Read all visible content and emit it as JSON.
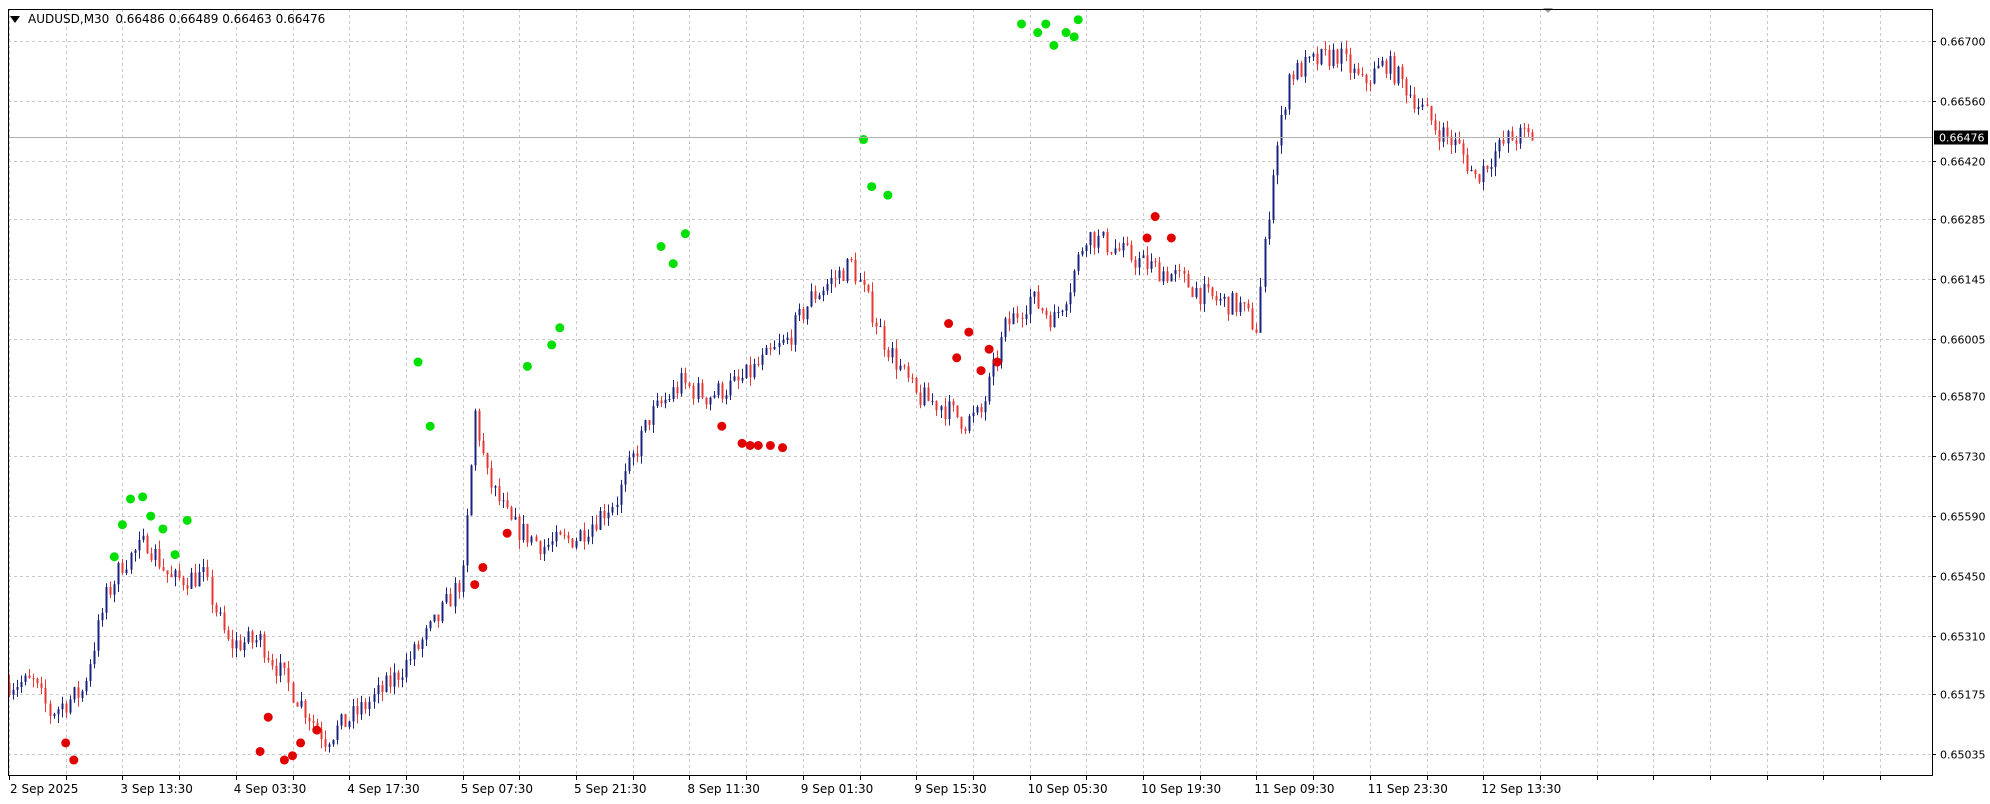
{
  "header": {
    "symbol": "AUDUSD,M30",
    "ohlc": "0.66486 0.66489 0.66463 0.66476"
  },
  "colors": {
    "background": "#ffffff",
    "grid": "#c8c8c8",
    "frame": "#000000",
    "bull": "#1a237e",
    "bear": "#e53935",
    "fractal_up": "#00e000",
    "fractal_down": "#e00000",
    "price_label_bg": "#000000",
    "price_label_text": "#ffffff",
    "current_line": "#b0b0b0"
  },
  "chart_data": {
    "type": "candlestick",
    "symbol": "AUDUSD",
    "timeframe": "M30",
    "y_ticks": [
      "0.66700",
      "0.66560",
      "0.66420",
      "0.66285",
      "0.66145",
      "0.66005",
      "0.65870",
      "0.65730",
      "0.65590",
      "0.65450",
      "0.65310",
      "0.65175",
      "0.65035"
    ],
    "y_tick_values": [
      0.667,
      0.6656,
      0.6642,
      0.66285,
      0.66145,
      0.66005,
      0.6587,
      0.6573,
      0.6559,
      0.6545,
      0.6531,
      0.65175,
      0.65035
    ],
    "ylim": [
      0.64985,
      0.66775
    ],
    "x_ticks": [
      "2 Sep 2025",
      "3 Sep 13:30",
      "4 Sep 03:30",
      "4 Sep 17:30",
      "5 Sep 07:30",
      "5 Sep 21:30",
      "8 Sep 11:30",
      "9 Sep 01:30",
      "9 Sep 15:30",
      "10 Sep 05:30",
      "10 Sep 19:30",
      "11 Sep 09:30",
      "11 Sep 23:30",
      "12 Sep 13:30"
    ],
    "x_tick_bar_index": [
      0,
      28,
      56,
      84,
      112,
      140,
      168,
      196,
      224,
      252,
      280,
      308,
      336,
      364
    ],
    "current_price": "0.66476",
    "price_path": [
      [
        0,
        0.652
      ],
      [
        6,
        0.652
      ],
      [
        10,
        0.6513
      ],
      [
        18,
        0.6518
      ],
      [
        24,
        0.654
      ],
      [
        28,
        0.6548
      ],
      [
        34,
        0.6553
      ],
      [
        40,
        0.6544
      ],
      [
        48,
        0.6545
      ],
      [
        54,
        0.6529
      ],
      [
        62,
        0.653
      ],
      [
        70,
        0.6518
      ],
      [
        78,
        0.6507
      ],
      [
        86,
        0.6513
      ],
      [
        94,
        0.652
      ],
      [
        100,
        0.6527
      ],
      [
        106,
        0.6535
      ],
      [
        112,
        0.6545
      ],
      [
        115,
        0.6583
      ],
      [
        118,
        0.6568
      ],
      [
        124,
        0.6557
      ],
      [
        132,
        0.6552
      ],
      [
        140,
        0.6554
      ],
      [
        150,
        0.6563
      ],
      [
        158,
        0.6582
      ],
      [
        166,
        0.659
      ],
      [
        172,
        0.6587
      ],
      [
        180,
        0.659
      ],
      [
        186,
        0.6595
      ],
      [
        192,
        0.66
      ],
      [
        198,
        0.661
      ],
      [
        208,
        0.6618
      ],
      [
        216,
        0.66
      ],
      [
        224,
        0.6587
      ],
      [
        230,
        0.6585
      ],
      [
        236,
        0.6581
      ],
      [
        240,
        0.6583
      ],
      [
        246,
        0.6603
      ],
      [
        252,
        0.661
      ],
      [
        258,
        0.6605
      ],
      [
        262,
        0.6613
      ],
      [
        266,
        0.6625
      ],
      [
        272,
        0.6622
      ],
      [
        280,
        0.6618
      ],
      [
        288,
        0.6615
      ],
      [
        296,
        0.661
      ],
      [
        304,
        0.6608
      ],
      [
        308,
        0.6603
      ],
      [
        312,
        0.664
      ],
      [
        316,
        0.6662
      ],
      [
        322,
        0.6665
      ],
      [
        328,
        0.6667
      ],
      [
        334,
        0.666
      ],
      [
        340,
        0.6665
      ],
      [
        346,
        0.6658
      ],
      [
        352,
        0.665
      ],
      [
        358,
        0.6645
      ],
      [
        362,
        0.6638
      ],
      [
        366,
        0.6643
      ],
      [
        370,
        0.6647
      ],
      [
        374,
        0.6648
      ],
      [
        376,
        0.66476
      ]
    ],
    "fractals_up": [
      {
        "bar": 26,
        "price": 0.65495
      },
      {
        "bar": 28,
        "price": 0.6557
      },
      {
        "bar": 30,
        "price": 0.6563
      },
      {
        "bar": 33,
        "price": 0.65635
      },
      {
        "bar": 35,
        "price": 0.6559
      },
      {
        "bar": 38,
        "price": 0.6556
      },
      {
        "bar": 41,
        "price": 0.655
      },
      {
        "bar": 44,
        "price": 0.6558
      },
      {
        "bar": 101,
        "price": 0.6595
      },
      {
        "bar": 104,
        "price": 0.658
      },
      {
        "bar": 128,
        "price": 0.6594
      },
      {
        "bar": 134,
        "price": 0.6599
      },
      {
        "bar": 136,
        "price": 0.6603
      },
      {
        "bar": 161,
        "price": 0.6622
      },
      {
        "bar": 164,
        "price": 0.6618
      },
      {
        "bar": 167,
        "price": 0.6625
      },
      {
        "bar": 211,
        "price": 0.6647
      },
      {
        "bar": 213,
        "price": 0.6636
      },
      {
        "bar": 217,
        "price": 0.6634
      },
      {
        "bar": 250,
        "price": 0.6674
      },
      {
        "bar": 254,
        "price": 0.6672
      },
      {
        "bar": 256,
        "price": 0.6674
      },
      {
        "bar": 258,
        "price": 0.6669
      },
      {
        "bar": 261,
        "price": 0.6672
      },
      {
        "bar": 263,
        "price": 0.6671
      },
      {
        "bar": 264,
        "price": 0.6675
      }
    ],
    "fractals_down": [
      {
        "bar": 14,
        "price": 0.6506
      },
      {
        "bar": 16,
        "price": 0.6502
      },
      {
        "bar": 62,
        "price": 0.6504
      },
      {
        "bar": 64,
        "price": 0.6512
      },
      {
        "bar": 68,
        "price": 0.6502
      },
      {
        "bar": 70,
        "price": 0.6503
      },
      {
        "bar": 72,
        "price": 0.6506
      },
      {
        "bar": 76,
        "price": 0.6509
      },
      {
        "bar": 115,
        "price": 0.6543
      },
      {
        "bar": 117,
        "price": 0.6547
      },
      {
        "bar": 123,
        "price": 0.6555
      },
      {
        "bar": 176,
        "price": 0.658
      },
      {
        "bar": 181,
        "price": 0.6576
      },
      {
        "bar": 183,
        "price": 0.65755
      },
      {
        "bar": 185,
        "price": 0.65755
      },
      {
        "bar": 188,
        "price": 0.65755
      },
      {
        "bar": 191,
        "price": 0.6575
      },
      {
        "bar": 232,
        "price": 0.6604
      },
      {
        "bar": 234,
        "price": 0.6596
      },
      {
        "bar": 237,
        "price": 0.6602
      },
      {
        "bar": 240,
        "price": 0.6593
      },
      {
        "bar": 242,
        "price": 0.6598
      },
      {
        "bar": 244,
        "price": 0.6595
      },
      {
        "bar": 281,
        "price": 0.6624
      },
      {
        "bar": 283,
        "price": 0.6629
      },
      {
        "bar": 287,
        "price": 0.6624
      }
    ],
    "title": "",
    "xlabel": "",
    "ylabel": "",
    "grid": true
  }
}
